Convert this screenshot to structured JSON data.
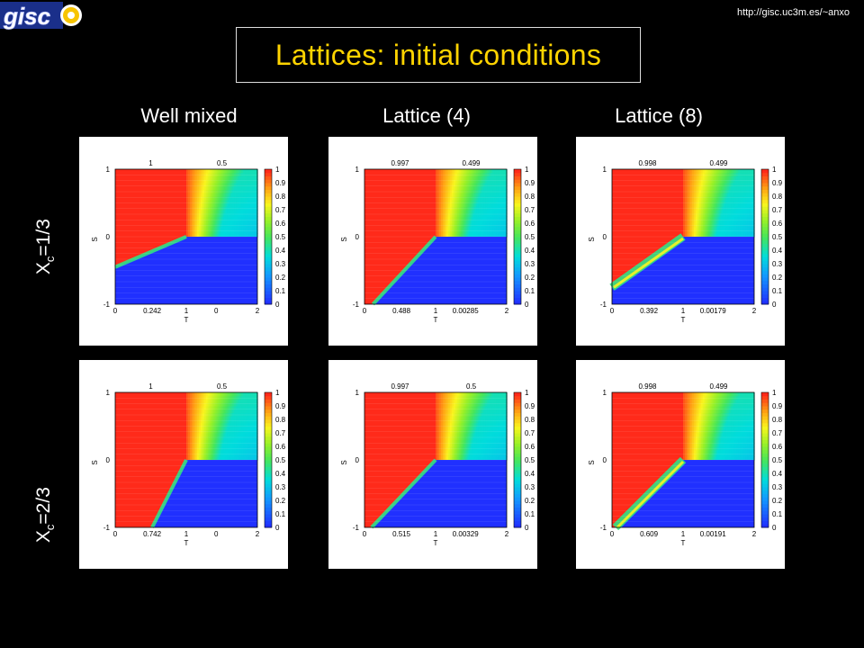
{
  "header": {
    "url": "http://gisc.uc3m.es/~anxo",
    "title": "Lattices: initial conditions",
    "logo_text": "gisc"
  },
  "columns": [
    "Well mixed",
    "Lattice (4)",
    "Lattice (8)"
  ],
  "rows": [
    {
      "label_main": "X",
      "label_sub": "c",
      "label_rest": "=1/3"
    },
    {
      "label_main": "X",
      "label_sub": "c",
      "label_rest": "=2/3"
    }
  ],
  "colors": {
    "red": "#ff2a1a",
    "blue": "#2030ff",
    "title": "#ffd400"
  },
  "chart_data": [
    {
      "type": "heatmap",
      "xlabel": "T",
      "ylabel": "S",
      "xticks": [
        "0",
        "1",
        "2"
      ],
      "yticks": [
        "-1",
        "0",
        "1"
      ],
      "colorbar_ticks": [
        "0",
        "0.1",
        "0.2",
        "0.3",
        "0.4",
        "0.5",
        "0.6",
        "0.7",
        "0.8",
        "0.9",
        "1"
      ],
      "region_values": {
        "top_left": "1",
        "top_right": "0.5",
        "bottom_left": "0.242",
        "bottom_right": "0"
      },
      "boundary": {
        "from": [
          0,
          -0.45
        ],
        "to": [
          1,
          0
        ]
      },
      "stripes": false
    },
    {
      "type": "heatmap",
      "xlabel": "T",
      "ylabel": "S",
      "xticks": [
        "0",
        "1",
        "2"
      ],
      "yticks": [
        "-1",
        "0",
        "1"
      ],
      "colorbar_ticks": [
        "0",
        "0.1",
        "0.2",
        "0.3",
        "0.4",
        "0.5",
        "0.6",
        "0.7",
        "0.8",
        "0.9",
        "1"
      ],
      "region_values": {
        "top_left": "0.997",
        "top_right": "0.499",
        "bottom_left": "0.488",
        "bottom_right": "0.00285"
      },
      "boundary": {
        "from": [
          0.12,
          -1
        ],
        "to": [
          1,
          0
        ]
      },
      "stripes": false
    },
    {
      "type": "heatmap",
      "xlabel": "T",
      "ylabel": "S",
      "xticks": [
        "0",
        "1",
        "2"
      ],
      "yticks": [
        "-1",
        "0",
        "1"
      ],
      "colorbar_ticks": [
        "0",
        "0.1",
        "0.2",
        "0.3",
        "0.4",
        "0.5",
        "0.6",
        "0.7",
        "0.8",
        "0.9",
        "1"
      ],
      "region_values": {
        "top_left": "0.998",
        "top_right": "0.499",
        "bottom_left": "0.392",
        "bottom_right": "0.00179"
      },
      "boundary": {
        "from": [
          0,
          -0.75
        ],
        "to": [
          1,
          0
        ]
      },
      "stripes": true
    },
    {
      "type": "heatmap",
      "xlabel": "T",
      "ylabel": "S",
      "xticks": [
        "0",
        "1",
        "2"
      ],
      "yticks": [
        "-1",
        "0",
        "1"
      ],
      "colorbar_ticks": [
        "0",
        "0.1",
        "0.2",
        "0.3",
        "0.4",
        "0.5",
        "0.6",
        "0.7",
        "0.8",
        "0.9",
        "1"
      ],
      "region_values": {
        "top_left": "1",
        "top_right": "0.5",
        "bottom_left": "0.742",
        "bottom_right": "0"
      },
      "boundary": {
        "from": [
          0.52,
          -1
        ],
        "to": [
          1,
          0
        ]
      },
      "stripes": false
    },
    {
      "type": "heatmap",
      "xlabel": "T",
      "ylabel": "S",
      "xticks": [
        "0",
        "1",
        "2"
      ],
      "yticks": [
        "-1",
        "0",
        "1"
      ],
      "colorbar_ticks": [
        "0",
        "0.1",
        "0.2",
        "0.3",
        "0.4",
        "0.5",
        "0.6",
        "0.7",
        "0.8",
        "0.9",
        "1"
      ],
      "region_values": {
        "top_left": "0.997",
        "top_right": "0.5",
        "bottom_left": "0.515",
        "bottom_right": "0.00329"
      },
      "boundary": {
        "from": [
          0.1,
          -1
        ],
        "to": [
          1,
          0
        ]
      },
      "stripes": false
    },
    {
      "type": "heatmap",
      "xlabel": "T",
      "ylabel": "S",
      "xticks": [
        "0",
        "1",
        "2"
      ],
      "yticks": [
        "-1",
        "0",
        "1"
      ],
      "colorbar_ticks": [
        "0",
        "0.1",
        "0.2",
        "0.3",
        "0.4",
        "0.5",
        "0.6",
        "0.7",
        "0.8",
        "0.9",
        "1"
      ],
      "region_values": {
        "top_left": "0.998",
        "top_right": "0.499",
        "bottom_left": "0.609",
        "bottom_right": "0.00191"
      },
      "boundary": {
        "from": [
          0.05,
          -1
        ],
        "to": [
          1,
          0
        ]
      },
      "stripes": true
    }
  ]
}
